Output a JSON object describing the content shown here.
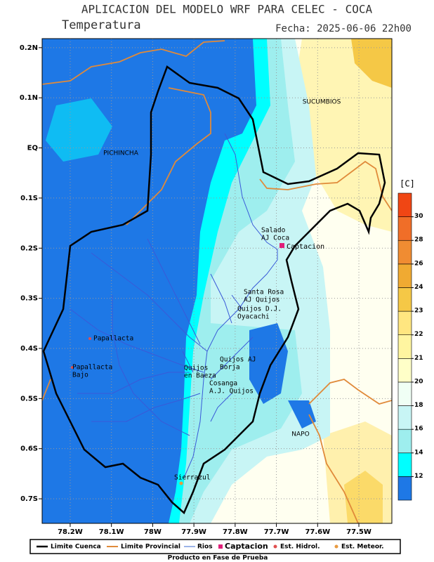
{
  "header": {
    "title": "APLICACION DEL MODELO WRF PARA CELEC - COCA",
    "variable": "Temperatura",
    "date": "Fecha: 2025-06-06 22h00"
  },
  "map": {
    "xlim": [
      -78.268,
      -77.42
    ],
    "ylim": [
      -0.749,
      0.218
    ],
    "lat_ticks": [
      {
        "value": 0.2,
        "label": "0.2N"
      },
      {
        "value": 0.1,
        "label": "0.1N"
      },
      {
        "value": 0,
        "label": "EQ"
      },
      {
        "value": -0.1,
        "label": "0.1S"
      },
      {
        "value": -0.2,
        "label": "0.2S"
      },
      {
        "value": -0.3,
        "label": "0.3S"
      },
      {
        "value": -0.4,
        "label": "0.4S"
      },
      {
        "value": -0.5,
        "label": "0.5S"
      },
      {
        "value": -0.6,
        "label": "0.6S"
      },
      {
        "value": -0.7,
        "label": "0.7S"
      }
    ],
    "lon_ticks": [
      {
        "value": -78.2,
        "label": "78.2W"
      },
      {
        "value": -78.1,
        "label": "78.1W"
      },
      {
        "value": -78.0,
        "label": "78W"
      },
      {
        "value": -77.9,
        "label": "77.9W"
      },
      {
        "value": -77.8,
        "label": "77.8W"
      },
      {
        "value": -77.7,
        "label": "77.7W"
      },
      {
        "value": -77.6,
        "label": "77.6W"
      },
      {
        "value": -77.5,
        "label": "77.5W"
      }
    ],
    "regions": [
      "PICHINCHA",
      "SUCUMBIOS",
      "NAPO"
    ],
    "stations": [
      {
        "lines": [
          "Salado",
          "AJ Coca"
        ]
      },
      {
        "lines": [
          "Captacion"
        ]
      },
      {
        "lines": [
          "Santa Rosa",
          "AJ Quijos"
        ]
      },
      {
        "lines": [
          "Quijos D.J.",
          "Oyacachi"
        ]
      },
      {
        "lines": [
          "Papallacta"
        ]
      },
      {
        "lines": [
          "Papallacta",
          "Bajo"
        ]
      },
      {
        "lines": [
          "Quijos AJ",
          "Borja"
        ]
      },
      {
        "lines": [
          "Quijos",
          "en Baeza"
        ]
      },
      {
        "lines": [
          "Cosanga",
          "A.J. Quijos"
        ]
      },
      {
        "lines": [
          "Sierrazul"
        ]
      }
    ]
  },
  "colorbar": {
    "title": "[C]",
    "ticks": [
      12,
      14,
      16,
      18,
      20,
      21,
      22,
      23,
      24,
      26,
      28,
      30
    ],
    "colors": [
      "#1e78e6",
      "#00ffff",
      "#9eeeee",
      "#c8f5f5",
      "#f0fff5",
      "#ffffc8",
      "#fff5a0",
      "#ffe680",
      "#f5c846",
      "#f0aa32",
      "#f08c32",
      "#f06e28",
      "#f04614"
    ]
  },
  "legend": [
    "Limite Cuenca",
    "Limite Provincial",
    "Rios",
    "Captacion",
    "Est. Hidrol.",
    "Est. Meteor."
  ],
  "footer": "Producto en Fase de Prueba"
}
